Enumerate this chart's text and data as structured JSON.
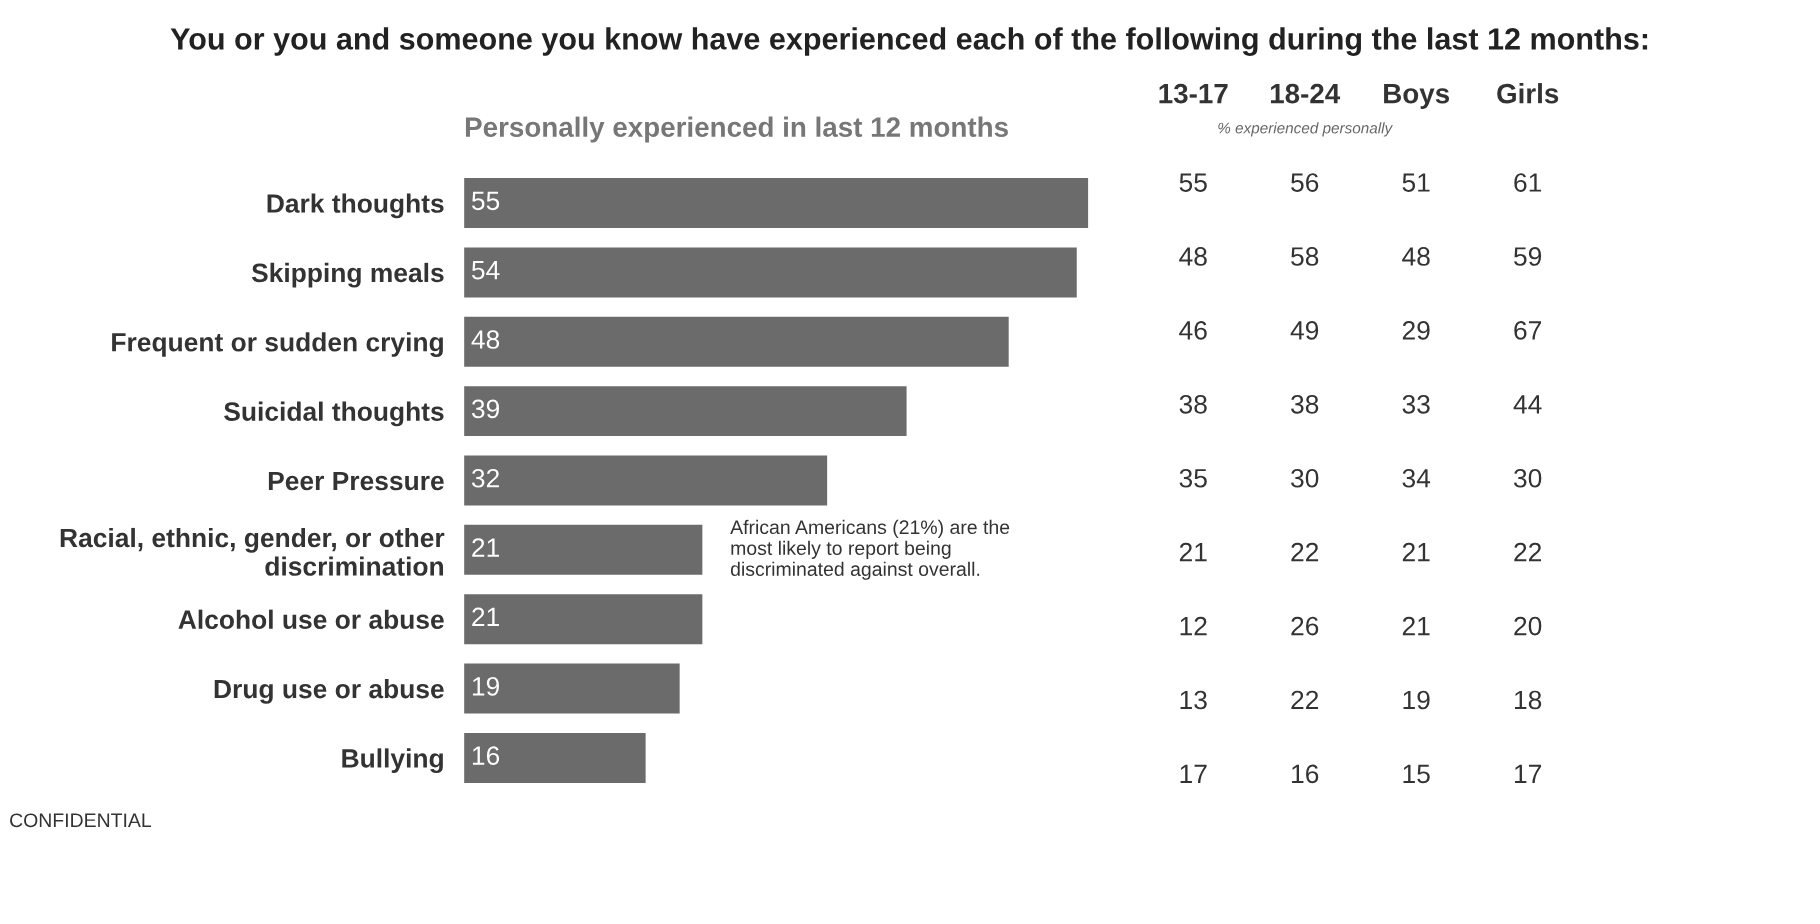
{
  "chart_data": [
    {
      "type": "bar",
      "orientation": "horizontal",
      "title": "You or you and someone you know have experienced each of the following during the last 12 months:",
      "subtitle": "Personally experienced in last 12 months",
      "categories": [
        "Dark thoughts",
        "Skipping meals",
        "Frequent or sudden crying",
        "Suicidal thoughts",
        "Peer Pressure",
        "Racial, ethnic, gender, or other\ndiscrimination",
        "Alcohol use or abuse",
        "Drug use or abuse",
        "Bullying"
      ],
      "values": [
        55,
        54,
        48,
        39,
        32,
        21,
        21,
        19,
        16
      ],
      "color": "#6b6b6b",
      "data_labels": true,
      "tick_labels": "y",
      "grid": false,
      "annotations": [
        {
          "text": "African Americans (21%) are the\nmost likely to report being\ndiscriminated against overall.",
          "x": 21,
          "y": "Racial, ethnic, gender, or other\ndiscrimination"
        },
        "CONFIDENTIAL"
      ]
    },
    {
      "type": "heatmap",
      "subtitle": "% experienced personally",
      "categories": [
        "13-17",
        "18-24",
        "Boys",
        "Girls"
      ],
      "y_categories": [
        null,
        null,
        null,
        null,
        null,
        null,
        null,
        null,
        null
      ],
      "tick_labels": "x",
      "data_labels": true,
      "cells": [
        [
          55,
          56,
          51,
          61
        ],
        [
          48,
          58,
          48,
          59
        ],
        [
          46,
          49,
          29,
          67
        ],
        [
          38,
          38,
          33,
          44
        ],
        [
          35,
          30,
          34,
          30
        ],
        [
          21,
          22,
          21,
          22
        ],
        [
          12,
          26,
          21,
          20
        ],
        [
          13,
          22,
          19,
          18
        ],
        [
          17,
          16,
          15,
          17
        ]
      ]
    }
  ]
}
